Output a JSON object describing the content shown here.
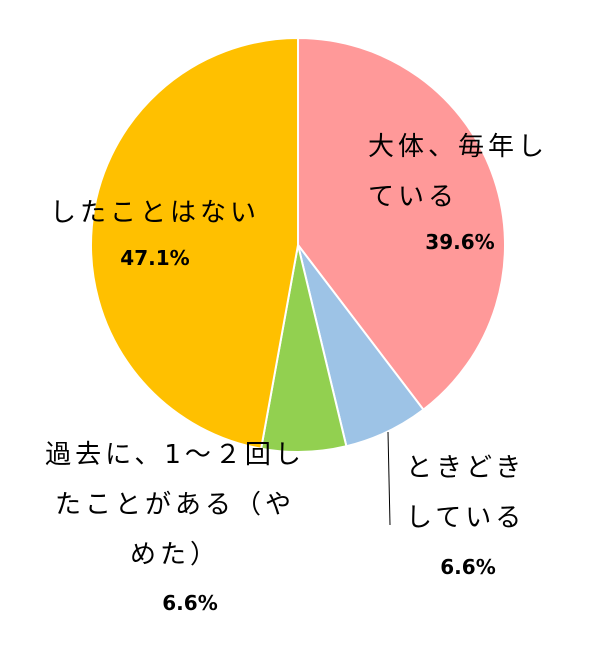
{
  "chart_data": {
    "type": "pie",
    "categories": [
      "大体、毎年している",
      "ときどきしている",
      "過去に、1～２回したことがある（やめた）",
      "したことはない"
    ],
    "values": [
      39.6,
      6.6,
      6.6,
      47.1
    ],
    "value_labels": [
      "39.6%",
      "6.6%",
      "6.6%",
      "47.1%"
    ],
    "colors": [
      "#ff9999",
      "#9dc3e6",
      "#92d050",
      "#ffc000"
    ]
  }
}
